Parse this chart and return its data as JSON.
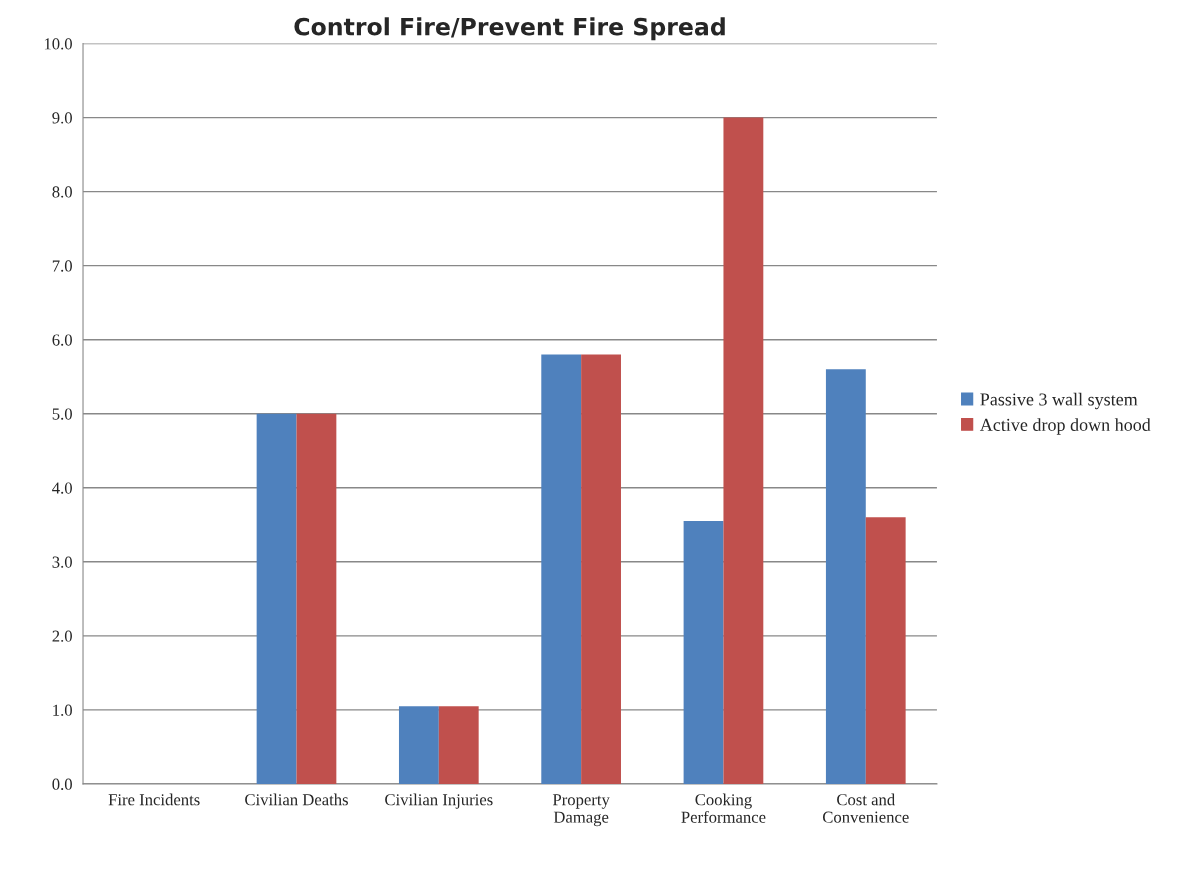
{
  "chart_data": {
    "type": "bar",
    "title": "Control Fire/Prevent Fire Spread",
    "categories": [
      "Fire Incidents",
      "Civilian Deaths",
      "Civilian Injuries",
      "Property\nDamage",
      "Cooking\nPerformance",
      "Cost and\nConvenience"
    ],
    "series": [
      {
        "name": "Passive 3 wall system",
        "color": "#4f81bd",
        "values": [
          null,
          5.0,
          1.05,
          5.8,
          3.55,
          5.6
        ]
      },
      {
        "name": "Active drop down hood",
        "color": "#c0504d",
        "values": [
          null,
          5.0,
          1.05,
          5.8,
          9.0,
          3.6
        ]
      }
    ],
    "ylim": [
      0,
      10
    ],
    "yticks": [
      {
        "value": 0,
        "label": "0.0"
      },
      {
        "value": 1,
        "label": "1.0"
      },
      {
        "value": 2,
        "label": "2.0"
      },
      {
        "value": 3,
        "label": "3.0"
      },
      {
        "value": 4,
        "label": "4.0"
      },
      {
        "value": 5,
        "label": "5.0"
      },
      {
        "value": 6,
        "label": "6.0"
      },
      {
        "value": 7,
        "label": "7.0"
      },
      {
        "value": 8,
        "label": "8.0"
      },
      {
        "value": 9,
        "label": "9.0"
      },
      {
        "value": 10,
        "label": "10.0"
      }
    ],
    "grid": "y",
    "legend": "right"
  }
}
